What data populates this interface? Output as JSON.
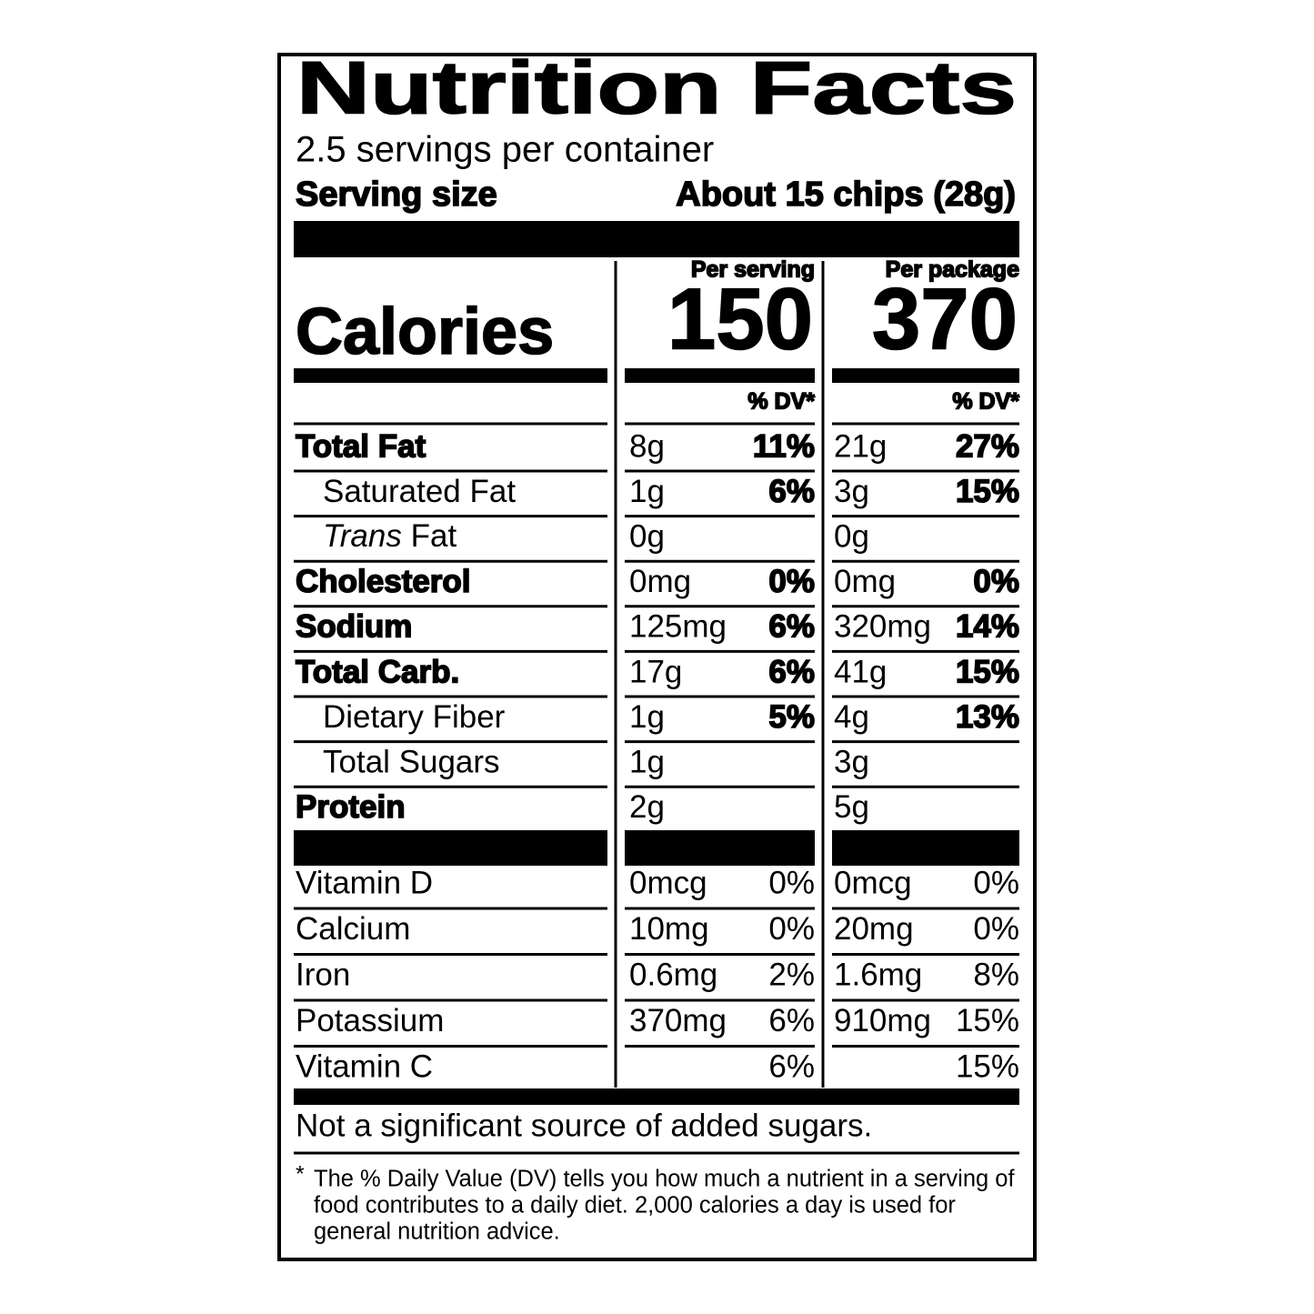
{
  "header": {
    "title": "Nutrition Facts",
    "servings": "2.5 servings per container",
    "serving_size_label": "Serving size",
    "serving_size_value": "About 15 chips (28g)"
  },
  "columns": [
    "Per serving",
    "Per package"
  ],
  "calories": {
    "label": "Calories",
    "values": [
      "150",
      "370"
    ]
  },
  "dv_header": [
    "% DV*",
    "% DV*"
  ],
  "nutrients": [
    {
      "name": "Total Fat",
      "bold": true,
      "serving": {
        "amount": "8g",
        "dv": "11%"
      },
      "package": {
        "amount": "21g",
        "dv": "27%"
      }
    },
    {
      "name": "Saturated Fat",
      "indent": true,
      "serving": {
        "amount": "1g",
        "dv": "6%"
      },
      "package": {
        "amount": "3g",
        "dv": "15%"
      }
    },
    {
      "name_italic": "Trans",
      "name": "Fat",
      "indent": true,
      "serving": {
        "amount": "0g"
      },
      "package": {
        "amount": "0g"
      }
    },
    {
      "name": "Cholesterol",
      "bold": true,
      "serving": {
        "amount": "0mg",
        "dv": "0%"
      },
      "package": {
        "amount": "0mg",
        "dv": "0%"
      }
    },
    {
      "name": "Sodium",
      "bold": true,
      "serving": {
        "amount": "125mg",
        "dv": "6%"
      },
      "package": {
        "amount": "320mg",
        "dv": "14%"
      }
    },
    {
      "name": "Total Carb.",
      "bold": true,
      "serving": {
        "amount": "17g",
        "dv": "6%"
      },
      "package": {
        "amount": "41g",
        "dv": "15%"
      }
    },
    {
      "name": "Dietary Fiber",
      "indent": true,
      "serving": {
        "amount": "1g",
        "dv": "5%"
      },
      "package": {
        "amount": "4g",
        "dv": "13%"
      }
    },
    {
      "name": "Total Sugars",
      "indent": true,
      "serving": {
        "amount": "1g"
      },
      "package": {
        "amount": "3g"
      }
    },
    {
      "name": "Protein",
      "bold": true,
      "serving": {
        "amount": "2g"
      },
      "package": {
        "amount": "5g"
      }
    }
  ],
  "vitamins": [
    {
      "name": "Vitamin D",
      "serving": {
        "amount": "0mcg",
        "dv": "0%"
      },
      "package": {
        "amount": "0mcg",
        "dv": "0%"
      }
    },
    {
      "name": "Calcium",
      "serving": {
        "amount": "10mg",
        "dv": "0%"
      },
      "package": {
        "amount": "20mg",
        "dv": "0%"
      }
    },
    {
      "name": "Iron",
      "serving": {
        "amount": "0.6mg",
        "dv": "2%"
      },
      "package": {
        "amount": "1.6mg",
        "dv": "8%"
      }
    },
    {
      "name": "Potassium",
      "serving": {
        "amount": "370mg",
        "dv": "6%"
      },
      "package": {
        "amount": "910mg",
        "dv": "15%"
      }
    },
    {
      "name": "Vitamin C",
      "serving": {
        "dv": "6%"
      },
      "package": {
        "dv": "15%"
      }
    }
  ],
  "footer": {
    "added_sugars": "Not a significant source of added sugars.",
    "footnote_marker": "*",
    "footnote_lines": [
      "The % Daily Value (DV) tells you how much a nutrient in a serving of",
      "food contributes to a daily diet. 2,000 calories a day is used for",
      "general nutrition advice."
    ]
  }
}
